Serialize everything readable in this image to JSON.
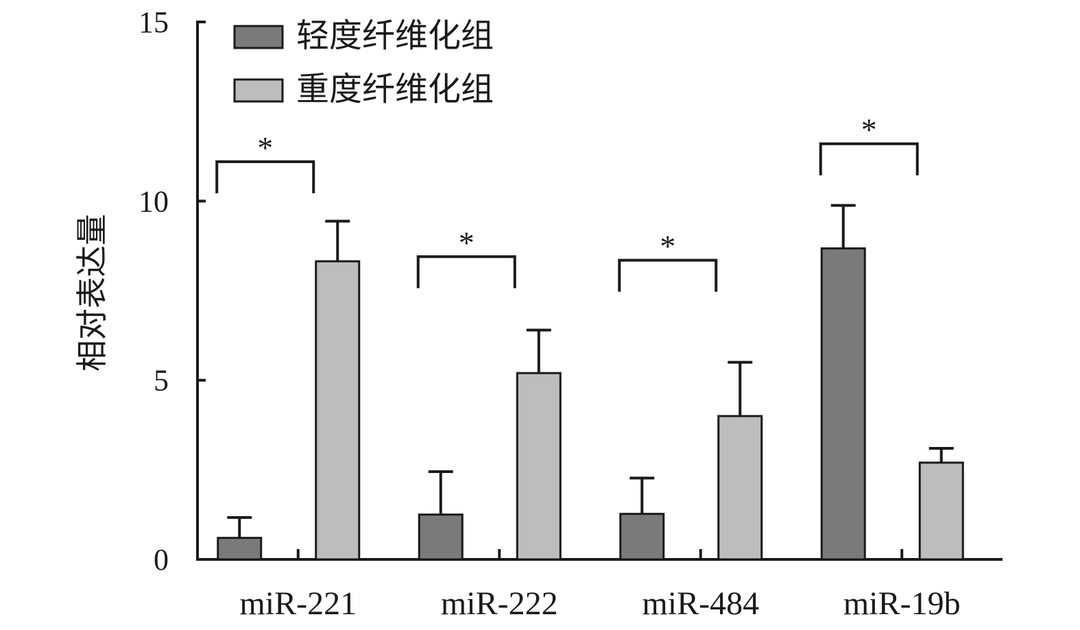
{
  "chart_data": {
    "type": "bar",
    "ylabel": "相对表达量",
    "xlabel": "",
    "ylim": [
      0,
      15
    ],
    "yticks": [
      0,
      5,
      10,
      15
    ],
    "categories": [
      "miR-221",
      "miR-222",
      "miR-484",
      "miR-19b"
    ],
    "series": [
      {
        "name": "轻度纤维化组",
        "color": "#7a7a7a",
        "values": [
          0.6,
          1.25,
          1.27,
          8.68
        ],
        "errors": [
          0.57,
          1.2,
          1.0,
          1.2
        ]
      },
      {
        "name": "重度纤维化组",
        "color": "#bdbdbd",
        "values": [
          8.32,
          5.2,
          4.0,
          2.7
        ],
        "errors": [
          1.12,
          1.2,
          1.5,
          0.4
        ]
      }
    ],
    "significance": [
      {
        "category": "miR-221",
        "label": "*",
        "bracket_y": 11.1
      },
      {
        "category": "miR-222",
        "label": "*",
        "bracket_y": 8.45
      },
      {
        "category": "miR-484",
        "label": "*",
        "bracket_y": 8.35
      },
      {
        "category": "miR-19b",
        "label": "*",
        "bracket_y": 11.6
      }
    ],
    "legend": "top-left",
    "grid": false
  }
}
